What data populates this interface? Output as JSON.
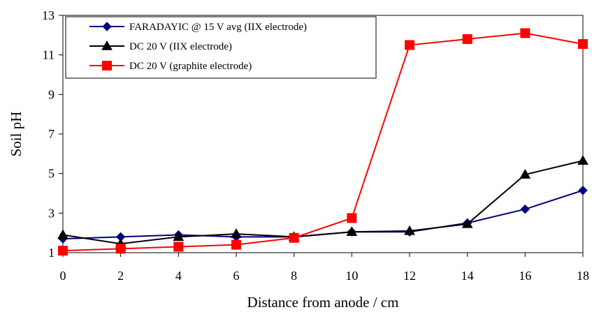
{
  "chart_data": {
    "type": "line",
    "title": "",
    "xlabel": "Distance from anode / cm",
    "ylabel": "Soil pH",
    "xlim": [
      0,
      18
    ],
    "ylim": [
      1,
      13
    ],
    "x_ticks": [
      "0",
      "2",
      "4",
      "6",
      "8",
      "10",
      "12",
      "14",
      "16",
      "18"
    ],
    "y_ticks": [
      "1",
      "3",
      "5",
      "7",
      "9",
      "11",
      "13"
    ],
    "grid": false,
    "legend_position": "top-left",
    "x": [
      0,
      2,
      4,
      6,
      8,
      10,
      12,
      14,
      16,
      18
    ],
    "series": [
      {
        "name": "FARADAYIC @ 15 V avg (IIX electrode)",
        "color": "#000080",
        "marker": "diamond",
        "values": [
          1.7,
          1.8,
          1.9,
          1.8,
          1.8,
          2.05,
          2.05,
          2.5,
          3.2,
          4.15
        ]
      },
      {
        "name": "DC 20 V (IIX electrode)",
        "color": "#000000",
        "marker": "triangle",
        "values": [
          1.9,
          1.45,
          1.8,
          1.95,
          1.8,
          2.05,
          2.1,
          2.45,
          4.95,
          5.65
        ]
      },
      {
        "name": "DC 20 V (graphite electrode)",
        "color": "#ff0000",
        "marker": "square",
        "values": [
          1.1,
          1.2,
          1.3,
          1.4,
          1.75,
          2.75,
          11.5,
          11.8,
          12.1,
          11.55
        ]
      }
    ]
  }
}
